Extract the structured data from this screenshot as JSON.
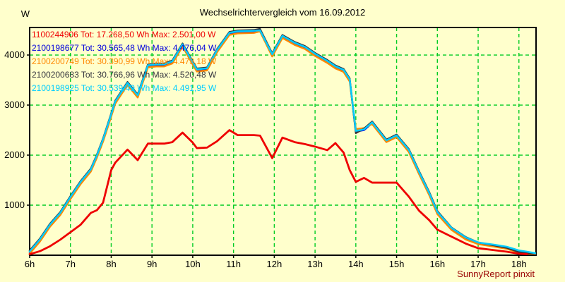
{
  "title": "Wechselrichtervergleich vom 16.09.2012",
  "y_axis_unit": "W",
  "footer_credit": "SunnyReport pinxit",
  "colors": {
    "background": "#FFFFCC",
    "grid": "#00CC22",
    "axis": "#000000",
    "credit": "#990000"
  },
  "chart_data": {
    "type": "line",
    "title": "Wechselrichtervergleich vom 16.09.2012",
    "xlabel": "",
    "ylabel": "W",
    "grid": true,
    "legend_position": "top-left",
    "xlim": [
      6,
      18.42
    ],
    "ylim": [
      0,
      4550
    ],
    "x_tick_values": [
      6,
      7,
      8,
      9,
      10,
      11,
      12,
      13,
      14,
      15,
      16,
      17,
      18
    ],
    "x_tick_labels": [
      "6h",
      "7h",
      "8h",
      "9h",
      "10h",
      "11h",
      "12h",
      "13h",
      "14h",
      "15h",
      "16h",
      "17h",
      "18h"
    ],
    "y_tick_values": [
      1000,
      2000,
      3000,
      4000
    ],
    "y_tick_labels": [
      "1000",
      "2000",
      "3000",
      "4000"
    ],
    "x": [
      6.0,
      6.25,
      6.5,
      6.75,
      7.0,
      7.25,
      7.5,
      7.65,
      7.8,
      8.0,
      8.1,
      8.4,
      8.65,
      8.9,
      9.1,
      9.3,
      9.5,
      9.75,
      10.0,
      10.1,
      10.35,
      10.6,
      10.9,
      11.1,
      11.3,
      11.5,
      11.65,
      11.95,
      12.2,
      12.5,
      12.75,
      13.0,
      13.3,
      13.5,
      13.7,
      13.85,
      14.0,
      14.2,
      14.4,
      14.75,
      15.0,
      15.3,
      15.55,
      15.8,
      16.0,
      16.35,
      16.7,
      17.0,
      17.4,
      17.7,
      18.0,
      18.2,
      18.4
    ],
    "series": [
      {
        "name": "1100244906",
        "legend": "1100244906 Tot: 17.268,50 Wh Max: 2.501,00 W",
        "total": "17.268,50 Wh",
        "max": "2.501,00 W",
        "color": "#EE0000",
        "y": [
          20,
          80,
          180,
          310,
          460,
          610,
          845,
          900,
          1050,
          1700,
          1850,
          2110,
          1900,
          2230,
          2230,
          2230,
          2260,
          2450,
          2250,
          2140,
          2150,
          2280,
          2500,
          2400,
          2400,
          2400,
          2390,
          1940,
          2350,
          2260,
          2220,
          2170,
          2100,
          2240,
          2050,
          1700,
          1465,
          1545,
          1450,
          1450,
          1450,
          1170,
          890,
          700,
          510,
          370,
          230,
          140,
          100,
          70,
          30,
          20,
          null
        ]
      },
      {
        "name": "2100198677",
        "legend": "2100198677 Tot: 30.565,48 Wh Max: 4.476,04 W",
        "total": "30.565,48 Wh",
        "max": "4.476,04 W",
        "color": "#0000DD",
        "y": [
          60,
          300,
          600,
          830,
          1150,
          1450,
          1700,
          1980,
          2300,
          2800,
          3060,
          3430,
          3180,
          3780,
          3800,
          3800,
          3860,
          4200,
          3840,
          3700,
          3720,
          4090,
          4430,
          4460,
          4465,
          4470,
          4476,
          4000,
          4370,
          4230,
          4150,
          4010,
          3870,
          3760,
          3690,
          3500,
          2470,
          2500,
          2640,
          2280,
          2380,
          2090,
          1650,
          1230,
          850,
          530,
          340,
          240,
          185,
          140,
          60,
          40,
          25
        ]
      },
      {
        "name": "2100200749",
        "legend": "2100200749 Tot: 30.390,99 Wh Max: 4.473,18 W",
        "total": "30.390,99 Wh",
        "max": "4.473,18 W",
        "color": "#FF8800",
        "y": [
          32,
          272,
          572,
          802,
          1122,
          1422,
          1672,
          1952,
          2272,
          2772,
          3032,
          3402,
          3152,
          3752,
          3772,
          3772,
          3832,
          4172,
          3812,
          3672,
          3692,
          4062,
          4402,
          4432,
          4437,
          4442,
          4473,
          3972,
          4342,
          4202,
          4122,
          3982,
          3842,
          3732,
          3662,
          3472,
          2520,
          2540,
          2620,
          2260,
          2360,
          2062,
          1622,
          1202,
          822,
          502,
          312,
          222,
          170,
          128,
          52,
          32,
          20
        ]
      },
      {
        "name": "2100200683",
        "legend": "2100200683 Tot: 30.766,96 Wh Max: 4.520,48 W",
        "total": "30.766,96 Wh",
        "max": "4.520,48 W",
        "color": "#35353F",
        "y": [
          90,
          330,
          630,
          860,
          1180,
          1480,
          1730,
          2010,
          2330,
          2830,
          3090,
          3460,
          3210,
          3810,
          3830,
          3830,
          3890,
          4230,
          3870,
          3730,
          3750,
          4120,
          4460,
          4490,
          4495,
          4500,
          4520,
          4030,
          4400,
          4260,
          4180,
          4040,
          3900,
          3790,
          3720,
          3530,
          2440,
          2530,
          2670,
          2310,
          2410,
          2120,
          1680,
          1260,
          880,
          550,
          360,
          255,
          195,
          148,
          65,
          45,
          28
        ]
      },
      {
        "name": "2100198925",
        "legend": "2100198925 Tot: 30.539,49 Wh Max: 4.491,95 W",
        "total": "30.539,49 Wh",
        "max": "4.491,95 W",
        "color": "#00CCFF",
        "y": [
          74,
          314,
          614,
          844,
          1164,
          1464,
          1714,
          1994,
          2314,
          2814,
          3074,
          3444,
          3194,
          3794,
          3814,
          3814,
          3874,
          4214,
          3854,
          3714,
          3734,
          4104,
          4444,
          4474,
          4479,
          4484,
          4492,
          4014,
          4384,
          4244,
          4164,
          4024,
          3884,
          3774,
          3704,
          3514,
          2484,
          2514,
          2654,
          2294,
          2394,
          2104,
          1664,
          1244,
          864,
          544,
          354,
          254,
          210,
          170,
          95,
          70,
          40
        ]
      }
    ]
  }
}
